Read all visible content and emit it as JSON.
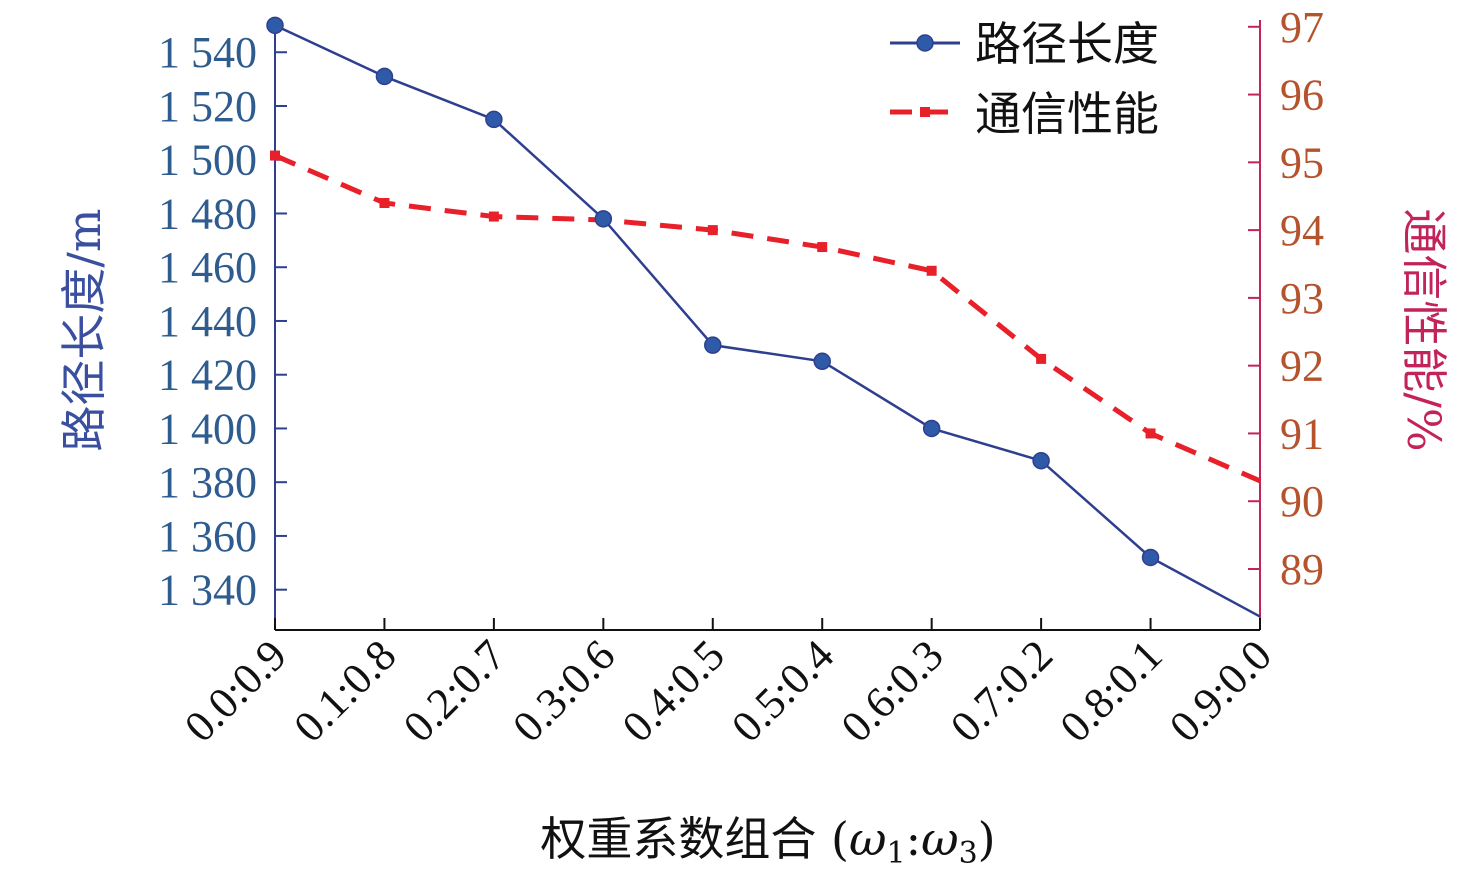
{
  "chart_data": {
    "type": "line",
    "xlabel": "权重系数组合 (ω1:ω3)",
    "xlabel_parts": {
      "main": "权重系数组合 (",
      "w1": "ω",
      "sub1": "1",
      "colon": ":",
      "w3": "ω",
      "sub3": "3",
      "close": ")"
    },
    "ylabel_left": "路径长度/m",
    "ylabel_right": "通信性能/%",
    "categories": [
      "0.0:0.9",
      "0.1:0.8",
      "0.2:0.7",
      "0.3:0.6",
      "0.4:0.5",
      "0.5:0.4",
      "0.6:0.3",
      "0.7:0.2",
      "0.8:0.1",
      "0.9:0.0"
    ],
    "y_left": {
      "ticks": [
        1340,
        1360,
        1380,
        1400,
        1420,
        1440,
        1460,
        1480,
        1500,
        1520,
        1540
      ],
      "tick_labels": [
        "1 340",
        "1 360",
        "1 380",
        "1 400",
        "1 420",
        "1 440",
        "1 460",
        "1 480",
        "1 500",
        "1 520",
        "1 540"
      ],
      "range": [
        1325,
        1552
      ]
    },
    "y_right": {
      "ticks": [
        89,
        90,
        91,
        92,
        93,
        94,
        95,
        96,
        97
      ],
      "tick_labels": [
        "89",
        "90",
        "91",
        "92",
        "93",
        "94",
        "95",
        "96",
        "97"
      ],
      "range": [
        88.1,
        97.1
      ]
    },
    "series": [
      {
        "name": "路径长度",
        "axis": "left",
        "color": "#2e3f8f",
        "style": "solid-marker",
        "values": [
          1550,
          1531,
          1515,
          1478,
          1431,
          1425,
          1400,
          1388,
          1352,
          1330
        ]
      },
      {
        "name": "通信性能",
        "axis": "right",
        "color": "#e8202a",
        "style": "dashed",
        "values": [
          95.1,
          94.4,
          94.2,
          94.15,
          94.0,
          93.75,
          93.4,
          92.1,
          91.0,
          90.3
        ]
      }
    ],
    "legend_position": "top-right",
    "grid": false
  }
}
